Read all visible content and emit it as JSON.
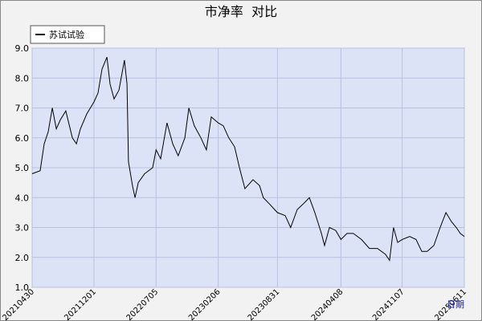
{
  "chart_data": {
    "type": "line",
    "title": "市净率  对比",
    "xlabel": "日期",
    "x": [
      "20210430",
      "20210528",
      "20210611",
      "20210625",
      "20210709",
      "20210723",
      "20210806",
      "20210825",
      "20210917",
      "20211001",
      "20211015",
      "20211106",
      "20211201",
      "20211215",
      "20211229",
      "20220115",
      "20220126",
      "20220209",
      "20220226",
      "20220317",
      "20220326",
      "20220331",
      "20220414",
      "20220423",
      "20220504",
      "20220526",
      "20220623",
      "20220705",
      "20220721",
      "20220812",
      "20220901",
      "20220920",
      "20221013",
      "20221027",
      "20221115",
      "20221208",
      "20221227",
      "20230113",
      "20230206",
      "20230224",
      "20230315",
      "20230404",
      "20230421",
      "20230510",
      "20230607",
      "20230630",
      "20230713",
      "20230802",
      "20230831",
      "20230927",
      "20231016",
      "20231108",
      "20231130",
      "20231220",
      "20240108",
      "20240131",
      "20240211",
      "20240228",
      "20240321",
      "20240408",
      "20240429",
      "20240521",
      "20240618",
      "20240716",
      "20240813",
      "20240910",
      "20240924",
      "20241008",
      "20241022",
      "20241107",
      "20241203",
      "20241225",
      "20250114",
      "20250202",
      "20250225",
      "20250319",
      "20250408",
      "20250427",
      "20250514",
      "20250528",
      "20250611"
    ],
    "series": [
      {
        "name": "苏试试验",
        "color": "#000000",
        "values": [
          4.8,
          4.9,
          5.8,
          6.2,
          7.0,
          6.3,
          6.6,
          6.9,
          6.0,
          5.8,
          6.3,
          6.8,
          7.2,
          7.5,
          8.3,
          8.7,
          7.8,
          7.3,
          7.6,
          8.6,
          7.8,
          5.2,
          4.4,
          4.0,
          4.5,
          4.8,
          5.0,
          5.6,
          5.3,
          6.5,
          5.8,
          5.4,
          6.0,
          7.0,
          6.4,
          6.0,
          5.6,
          6.7,
          6.5,
          6.4,
          6.0,
          5.7,
          5.0,
          4.3,
          4.6,
          4.4,
          4.0,
          3.8,
          3.5,
          3.4,
          3.0,
          3.6,
          3.8,
          4.0,
          3.5,
          2.8,
          2.4,
          3.0,
          2.9,
          2.6,
          2.8,
          2.8,
          2.6,
          2.3,
          2.3,
          2.1,
          1.9,
          3.0,
          2.5,
          2.6,
          2.7,
          2.6,
          2.2,
          2.2,
          2.4,
          3.0,
          3.5,
          3.2,
          3.0,
          2.8,
          2.7
        ]
      }
    ],
    "xlim": [
      "20210430",
      "20250611"
    ],
    "xticks": [
      "20210430",
      "20211201",
      "20220705",
      "20230206",
      "20230831",
      "20240408",
      "20241107",
      "20250611"
    ],
    "ylim": [
      1,
      9
    ],
    "yticks": [
      {
        "value": 1,
        "label": "1.0"
      },
      {
        "value": 2,
        "label": "2.0"
      },
      {
        "value": 3,
        "label": "3.0"
      },
      {
        "value": 4,
        "label": "4.0"
      },
      {
        "value": 5,
        "label": "5.0"
      },
      {
        "value": 6,
        "label": "6.0"
      },
      {
        "value": 7,
        "label": "7.0"
      },
      {
        "value": 8,
        "label": "8.0"
      },
      {
        "value": 9,
        "label": "9.0"
      }
    ],
    "grid": true
  }
}
